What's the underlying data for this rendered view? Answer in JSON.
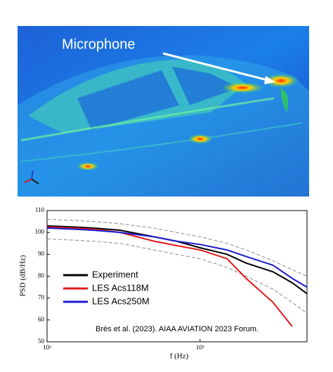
{
  "image": {
    "label": "Microphone"
  },
  "chart_data": {
    "type": "line",
    "x": [
      100,
      150,
      200,
      300,
      500,
      700,
      1000,
      1500,
      2000,
      3000,
      4000,
      5000
    ],
    "xlim": [
      100,
      5000
    ],
    "log_x": true,
    "xticks": [
      {
        "value": 100,
        "label": "10²"
      },
      {
        "value": 1000,
        "label": "10³"
      }
    ],
    "ylim": [
      50,
      110
    ],
    "yticks": [
      50,
      60,
      70,
      80,
      90,
      100,
      110
    ],
    "x_label": "f (Hz)",
    "y_label": "PSD (dB/Hz)",
    "annotation": "Brès et al. (2023). AIAA AVIATION 2023 Forum.",
    "series": [
      {
        "color": "#888888",
        "dashed": true,
        "values": [
          106,
          105.5,
          105,
          104,
          102,
          100,
          98,
          95,
          92,
          87,
          83,
          80
        ]
      },
      {
        "color": "#888888",
        "dashed": true,
        "values": [
          97,
          96.5,
          96,
          95,
          92,
          90,
          88,
          84,
          80,
          74,
          68,
          63
        ]
      },
      {
        "name": "Experiment",
        "color": "#000000",
        "values": [
          103,
          102.5,
          102,
          101,
          98,
          96,
          93,
          90,
          86,
          82,
          77,
          72
        ]
      },
      {
        "name": "LES Acs118M",
        "color": "#e0191b",
        "values": [
          102.5,
          102,
          101.5,
          100,
          96,
          94,
          92,
          88,
          79,
          68,
          57,
          null
        ]
      },
      {
        "name": "LES Acs250M",
        "color": "#1a1ad0",
        "values": [
          102,
          101.5,
          101,
          100,
          98,
          96,
          94.5,
          92,
          89,
          85,
          79,
          75
        ]
      }
    ]
  }
}
